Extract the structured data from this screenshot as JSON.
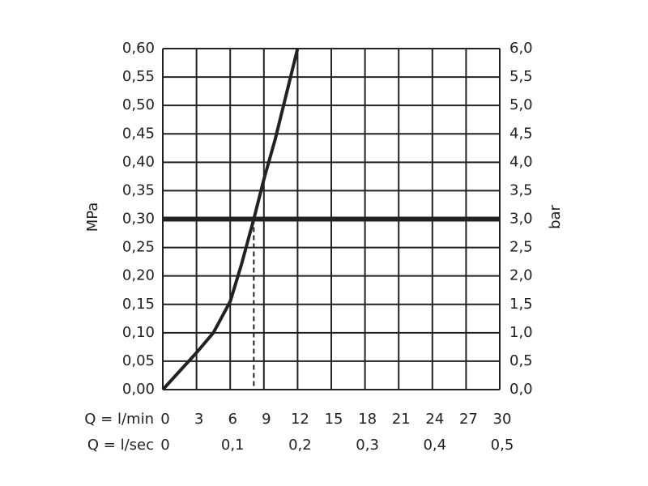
{
  "chart_data": {
    "type": "line",
    "x": [
      0,
      3,
      4.5,
      6,
      7,
      8.1,
      9,
      10,
      11,
      12
    ],
    "values": [
      0,
      0.065,
      0.1,
      0.155,
      0.22,
      0.3,
      0.37,
      0.44,
      0.52,
      0.6
    ],
    "color": "#222222",
    "xlabel": "Q = l/min",
    "x2label": "Q = l/sec",
    "ylabel": "MPa",
    "y2label": "bar",
    "xlim": [
      0,
      30
    ],
    "xticks": [
      0,
      3,
      6,
      9,
      12,
      15,
      18,
      21,
      24,
      27,
      30
    ],
    "x2lim": [
      0,
      0.5
    ],
    "x2ticks": [
      0,
      {
        "value": 0.1,
        "label": "0,1"
      },
      {
        "value": 0.2,
        "label": "0,2"
      },
      {
        "value": 0.3,
        "label": "0,3"
      },
      {
        "value": 0.4,
        "label": "0,4"
      },
      {
        "value": 0.5,
        "label": "0,5"
      }
    ],
    "ylim": [
      0,
      0.6
    ],
    "yticks": [
      {
        "value": 0,
        "label": "0,00"
      },
      {
        "value": 0.05,
        "label": "0,05"
      },
      {
        "value": 0.1,
        "label": "0,10"
      },
      {
        "value": 0.15,
        "label": "0,15"
      },
      {
        "value": 0.2,
        "label": "0,20"
      },
      {
        "value": 0.25,
        "label": "0,25"
      },
      {
        "value": 0.3,
        "label": "0,30"
      },
      {
        "value": 0.35,
        "label": "0,35"
      },
      {
        "value": 0.4,
        "label": "0,40"
      },
      {
        "value": 0.45,
        "label": "0,45"
      },
      {
        "value": 0.5,
        "label": "0,50"
      },
      {
        "value": 0.55,
        "label": "0,55"
      },
      {
        "value": 0.6,
        "label": "0,60"
      }
    ],
    "y2lim": [
      0,
      6
    ],
    "y2ticks": [
      {
        "value": 0,
        "label": "0,0"
      },
      {
        "value": 0.5,
        "label": "0,5"
      },
      {
        "value": 1,
        "label": "1,0"
      },
      {
        "value": 1.5,
        "label": "1,5"
      },
      {
        "value": 2,
        "label": "2,0"
      },
      {
        "value": 2.5,
        "label": "2,5"
      },
      {
        "value": 3,
        "label": "3,0"
      },
      {
        "value": 3.5,
        "label": "3,5"
      },
      {
        "value": 4,
        "label": "4,0"
      },
      {
        "value": 4.5,
        "label": "4,5"
      },
      {
        "value": 5,
        "label": "5,0"
      },
      {
        "value": 5.5,
        "label": "5,5"
      },
      {
        "value": 6,
        "label": "6,0"
      }
    ],
    "hline": 0.3,
    "vline": 8.1,
    "grid": true
  }
}
